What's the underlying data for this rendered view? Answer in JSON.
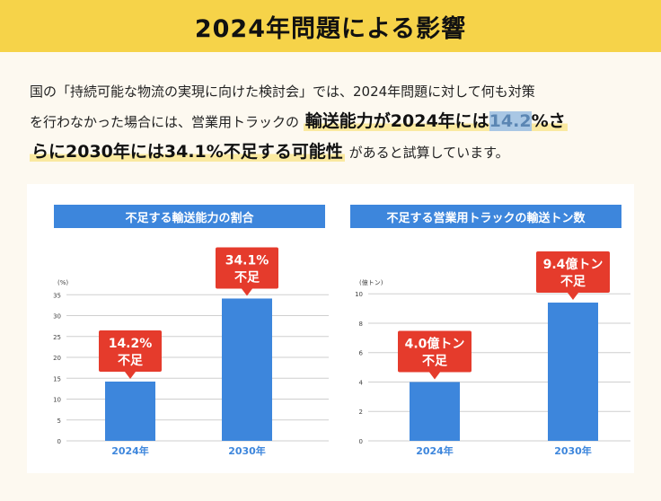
{
  "header": {
    "title": "2024年問題による影響"
  },
  "intro": {
    "line1": "国の「持続可能な物流の実現に向けた検討会」では、2024年問題に対して何も対策",
    "line2_pre": "を行わなかった場合には、営業用トラックの ",
    "line2_em_a": "輸送能力が2024年には",
    "line2_em_sel": "14.2",
    "line2_em_b": "%さ",
    "line3_em": "らに2030年には34.1%不足する可能性",
    "line3_post": " があると試算しています。"
  },
  "colors": {
    "bar": "#3d86dc",
    "callout": "#e53b2c",
    "header": "#f6d349",
    "grid": "#cfcfcf"
  },
  "chart_data": [
    {
      "type": "bar",
      "title": "不足する輸送能力の割合",
      "unit_label": "(%)",
      "categories": [
        "2024年",
        "2030年"
      ],
      "values": [
        14.2,
        34.1
      ],
      "ylim": [
        0,
        37
      ],
      "yticks": [
        0,
        5,
        10,
        15,
        20,
        25,
        30,
        35
      ],
      "callouts": [
        [
          "14.2%",
          "不足"
        ],
        [
          "34.1%",
          "不足"
        ]
      ]
    },
    {
      "type": "bar",
      "title": "不足する営業用トラックの輸送トン数",
      "unit_label": "(億トン)",
      "categories": [
        "2024年",
        "2030年"
      ],
      "values": [
        4.0,
        9.4
      ],
      "ylim": [
        0,
        10.5
      ],
      "yticks": [
        0,
        2,
        4,
        6,
        8,
        10
      ],
      "callouts": [
        [
          "4.0億トン",
          "不足"
        ],
        [
          "9.4億トン",
          "不足"
        ]
      ]
    }
  ]
}
